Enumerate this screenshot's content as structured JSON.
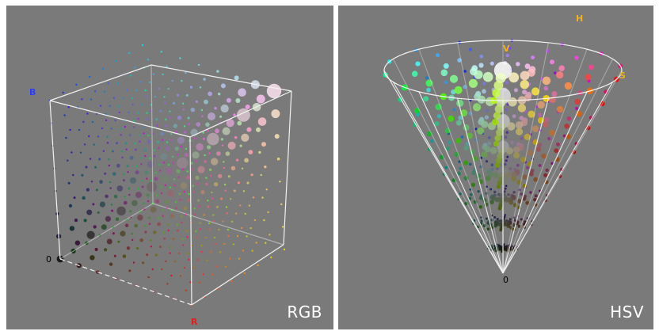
{
  "panels": {
    "rgb": {
      "title": "RGB",
      "axis_r": "R",
      "axis_b": "B",
      "origin": "0",
      "colors": {
        "r_label": "#e02020",
        "b_label": "#2a3cff"
      }
    },
    "hsv": {
      "title": "HSV",
      "axis_h": "H",
      "axis_v": "V",
      "axis_s": "S",
      "origin": "0",
      "colors": {
        "label": "#f0b21c"
      }
    }
  }
}
